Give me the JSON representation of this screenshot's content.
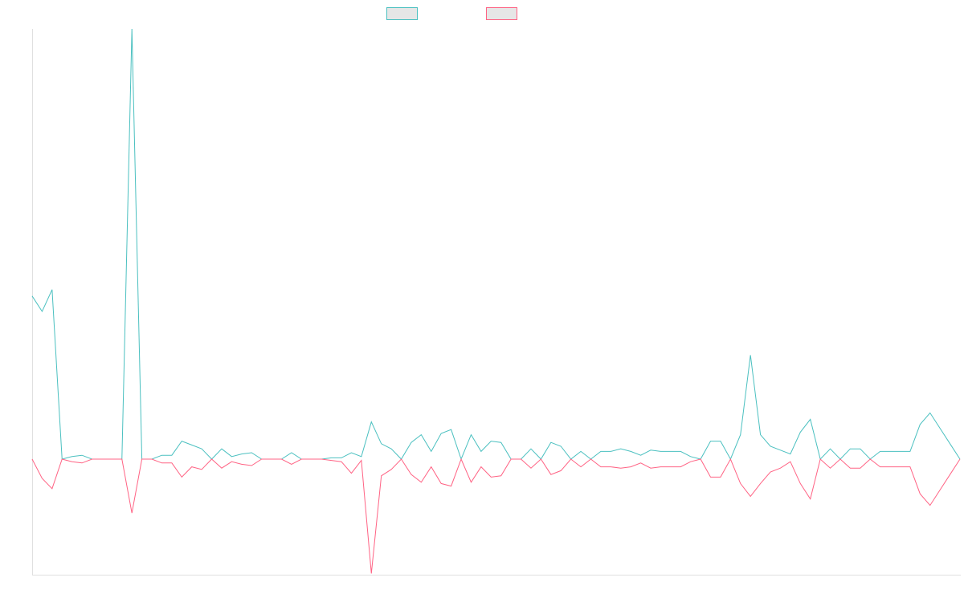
{
  "chart_data": {
    "type": "line",
    "title": "",
    "xlabel": "",
    "ylabel": "",
    "grid": false,
    "legend": "top-center",
    "x": [
      0,
      1,
      2,
      3,
      4,
      5,
      6,
      7,
      8,
      9,
      10,
      11,
      12,
      13,
      14,
      15,
      16,
      17,
      18,
      19,
      20,
      21,
      22,
      23,
      24,
      25,
      26,
      27,
      28,
      29,
      30,
      31,
      32,
      33,
      34,
      35,
      36,
      37,
      38,
      39,
      40,
      41,
      42,
      43,
      44,
      45,
      46,
      47,
      48,
      49,
      50,
      51,
      52,
      53,
      54,
      55,
      56,
      57,
      58,
      59,
      60,
      61,
      62,
      63,
      64,
      65,
      66,
      67,
      68,
      69,
      70,
      71,
      72,
      73,
      74,
      75,
      76,
      77,
      78,
      79,
      80,
      81,
      82,
      83,
      84,
      85,
      86,
      87,
      88,
      89,
      90,
      91,
      92,
      93
    ],
    "ylim": [
      -0.9,
      3.35
    ],
    "series": [
      {
        "name": "",
        "color": "#4bc0c0",
        "values": [
          1.27,
          1.15,
          1.32,
          0.0,
          0.02,
          0.03,
          0.0,
          0.0,
          0.0,
          0.0,
          3.35,
          0.0,
          0.0,
          0.03,
          0.03,
          0.14,
          0.11,
          0.08,
          0.0,
          0.08,
          0.02,
          0.04,
          0.05,
          0.0,
          0.0,
          0.0,
          0.05,
          0.0,
          0.0,
          0.0,
          0.01,
          0.01,
          0.05,
          0.02,
          0.29,
          0.12,
          0.08,
          0.0,
          0.13,
          0.19,
          0.06,
          0.2,
          0.23,
          0.0,
          0.19,
          0.06,
          0.14,
          0.13,
          0.0,
          0.0,
          0.08,
          0.0,
          0.13,
          0.1,
          0.0,
          0.06,
          0.0,
          0.06,
          0.06,
          0.08,
          0.06,
          0.03,
          0.07,
          0.06,
          0.06,
          0.06,
          0.02,
          0.0,
          0.14,
          0.14,
          0.0,
          0.19,
          0.81,
          0.19,
          0.1,
          0.07,
          0.04,
          0.21,
          0.31,
          0.0,
          0.08,
          0.0,
          0.08,
          0.08,
          0.0,
          0.06,
          0.06,
          0.06,
          0.06,
          0.27,
          0.36,
          0.24,
          0.12,
          0.0
        ]
      },
      {
        "name": "",
        "color": "#ff6384",
        "values": [
          0.0,
          -0.15,
          -0.23,
          0.0,
          -0.02,
          -0.03,
          0.0,
          0.0,
          0.0,
          0.0,
          -0.42,
          0.0,
          0.0,
          -0.03,
          -0.03,
          -0.14,
          -0.06,
          -0.08,
          0.0,
          -0.07,
          -0.02,
          -0.04,
          -0.05,
          0.0,
          0.0,
          0.0,
          -0.04,
          0.0,
          0.0,
          0.0,
          -0.01,
          -0.02,
          -0.11,
          -0.01,
          -0.89,
          -0.13,
          -0.08,
          0.0,
          -0.12,
          -0.18,
          -0.06,
          -0.19,
          -0.21,
          0.0,
          -0.18,
          -0.06,
          -0.14,
          -0.13,
          0.0,
          0.0,
          -0.07,
          0.0,
          -0.12,
          -0.09,
          0.0,
          -0.06,
          0.0,
          -0.06,
          -0.06,
          -0.07,
          -0.06,
          -0.03,
          -0.07,
          -0.06,
          -0.06,
          -0.06,
          -0.02,
          0.0,
          -0.14,
          -0.14,
          0.0,
          -0.19,
          -0.29,
          -0.19,
          -0.1,
          -0.07,
          -0.02,
          -0.19,
          -0.31,
          0.0,
          -0.07,
          0.0,
          -0.07,
          -0.07,
          0.0,
          -0.06,
          -0.06,
          -0.06,
          -0.06,
          -0.27,
          -0.36,
          -0.24,
          -0.12,
          0.0
        ]
      }
    ]
  }
}
